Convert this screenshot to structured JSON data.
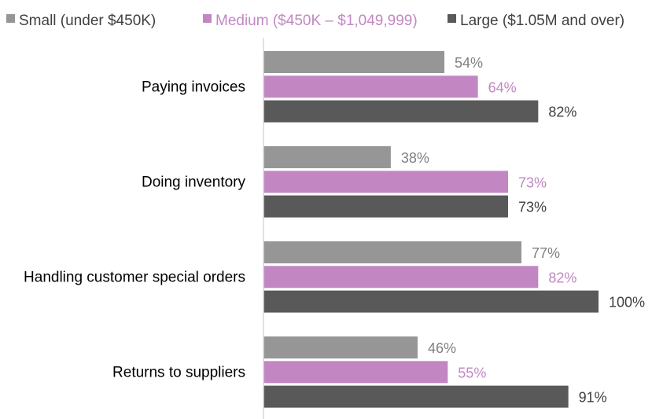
{
  "chart_data": {
    "type": "bar",
    "orientation": "horizontal",
    "title": "",
    "xlabel": "",
    "ylabel": "",
    "xlim": [
      0,
      100
    ],
    "grid": false,
    "legend_position": "top",
    "categories": [
      "Paying invoices",
      "Doing inventory",
      "Handling customer special orders",
      "Returns to suppliers"
    ],
    "series": [
      {
        "name": "Small (under $450K)",
        "color": "#969696",
        "label_color": "#7f7f7f",
        "values": [
          54,
          38,
          77,
          46
        ],
        "labels": [
          "54%",
          "38%",
          "77%",
          "46%"
        ]
      },
      {
        "name": "Medium ($450K – $1,049,999)",
        "color": "#c287c3",
        "label_color": "#c287c3",
        "values": [
          64,
          73,
          82,
          55
        ],
        "labels": [
          "64%",
          "73%",
          "82%",
          "55%"
        ]
      },
      {
        "name": "Large ($1.05M and over)",
        "color": "#595959",
        "label_color": "#404040",
        "values": [
          82,
          73,
          100,
          91
        ],
        "labels": [
          "82%",
          "73%",
          "100%",
          "91%"
        ]
      }
    ]
  }
}
